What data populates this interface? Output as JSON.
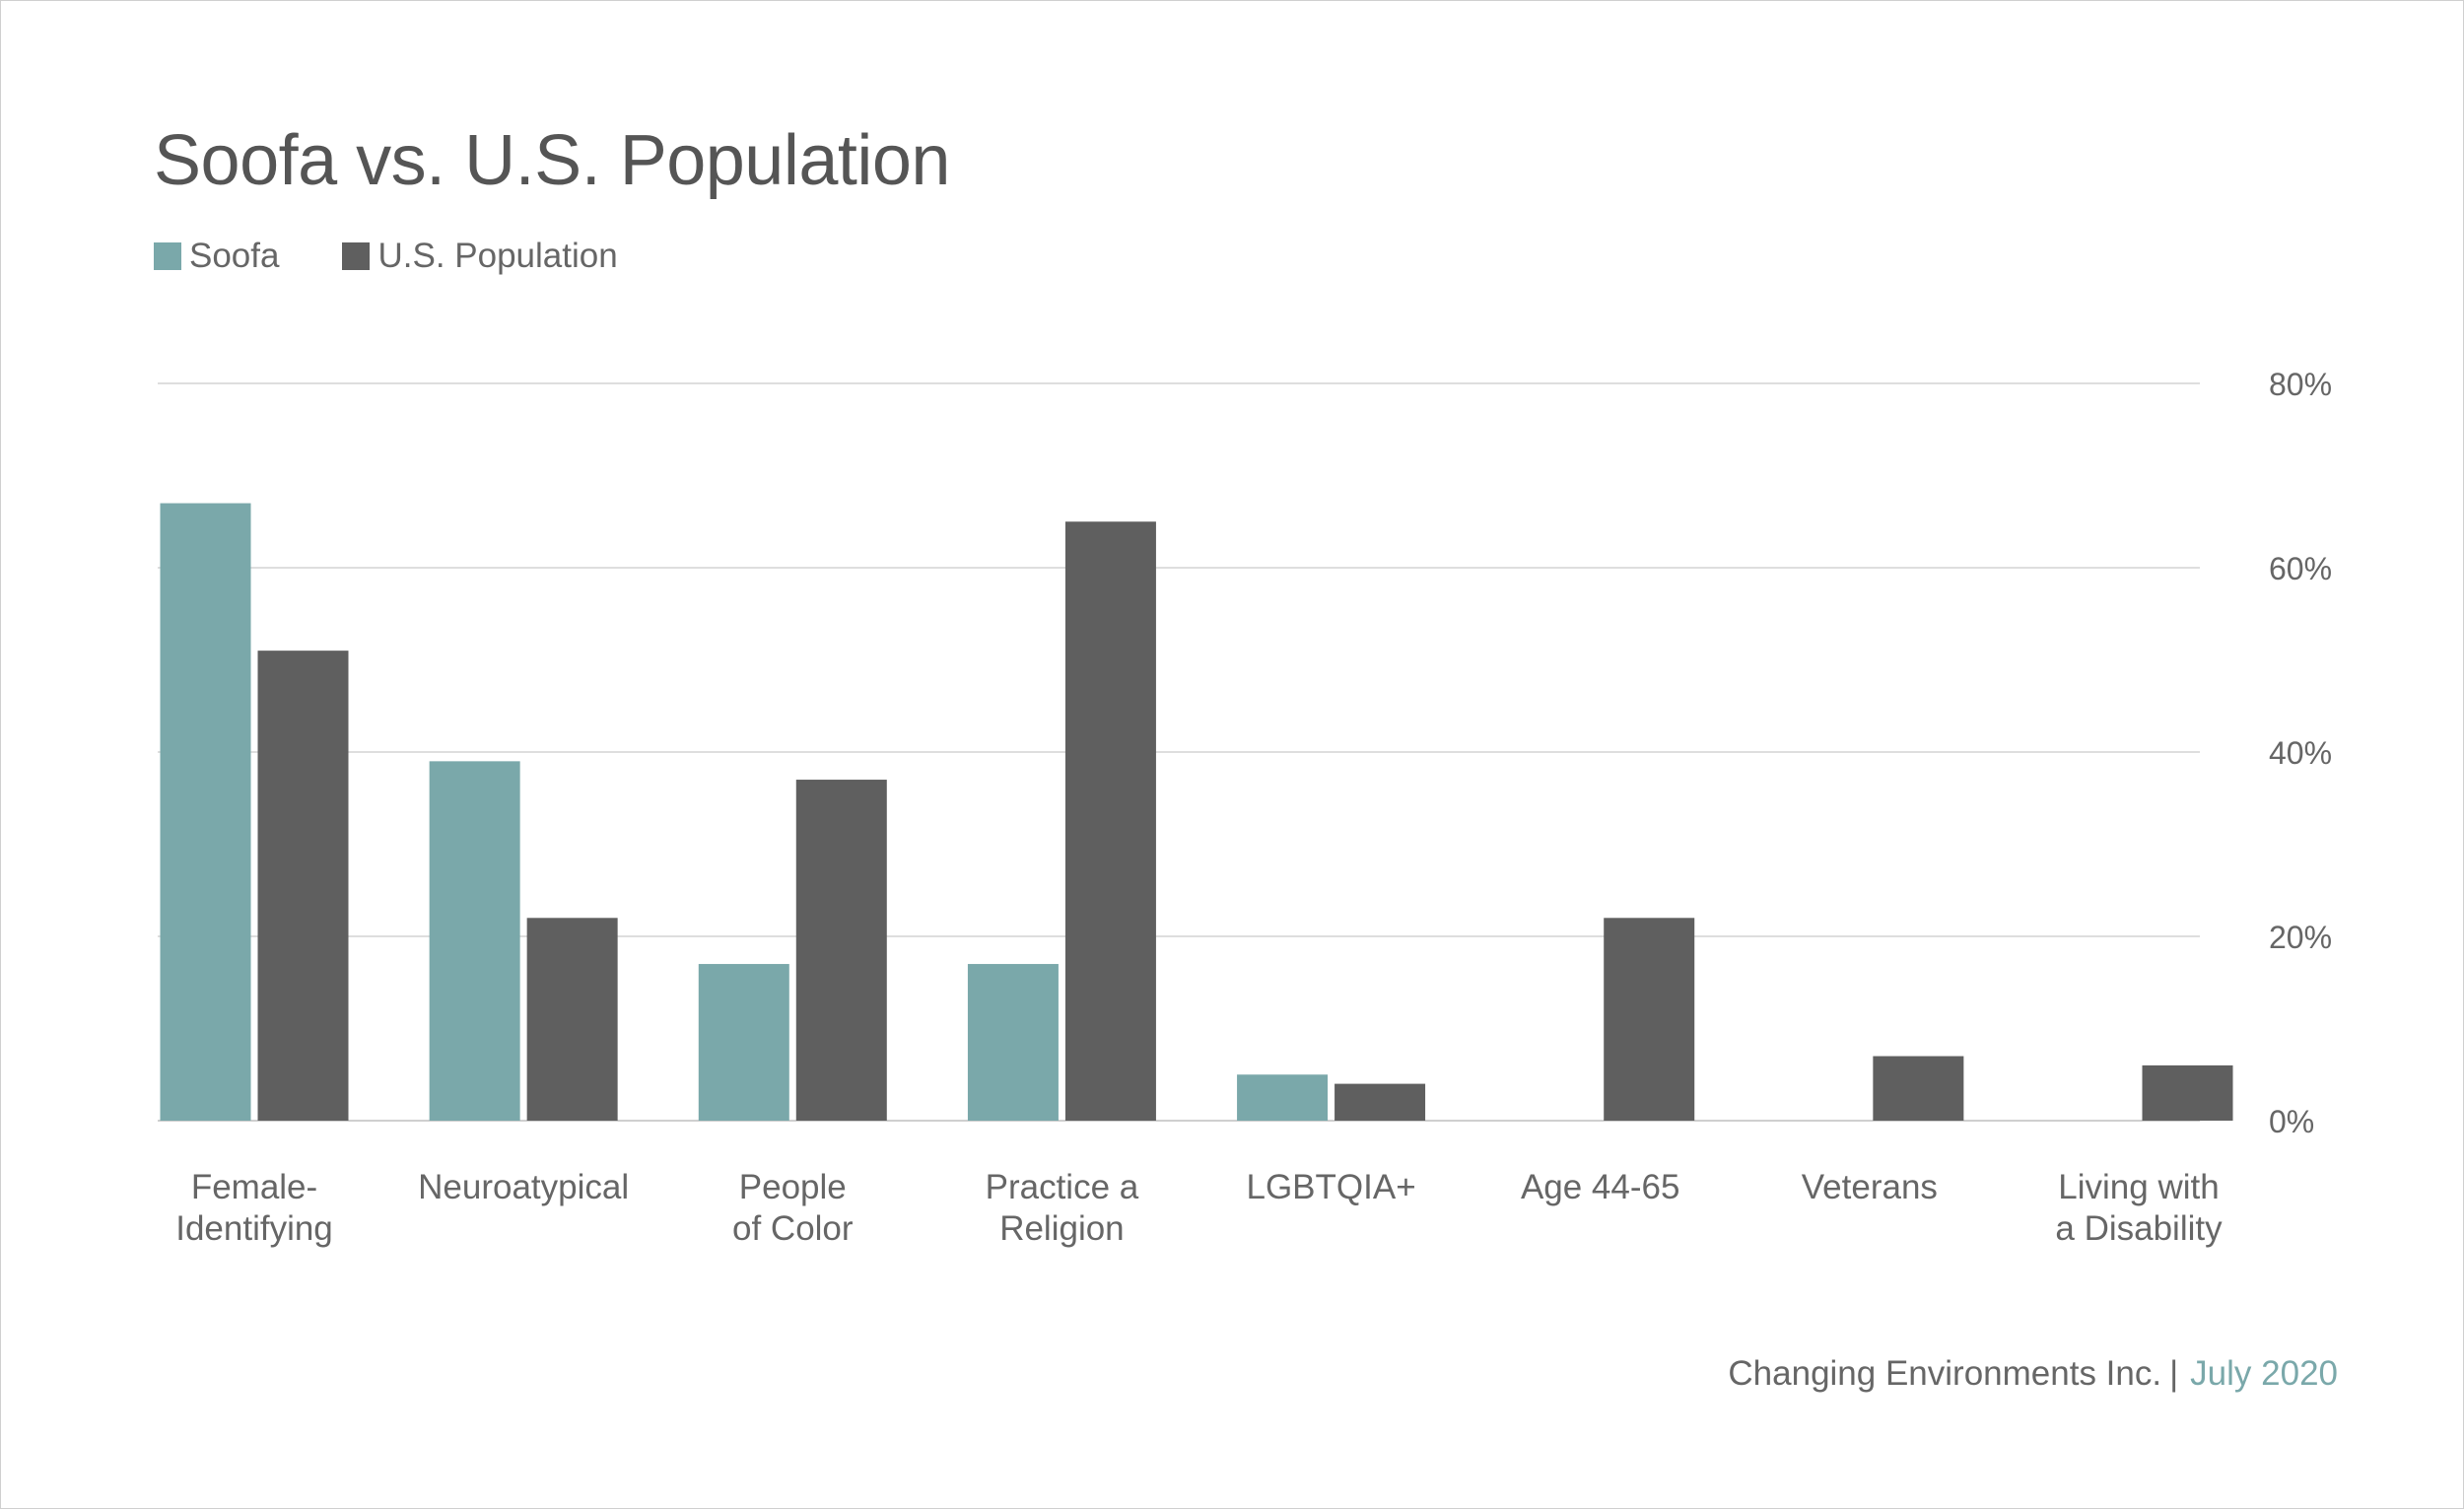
{
  "title": "Soofa vs. U.S. Population",
  "legend": [
    {
      "label": "Soofa",
      "color": "#7aa8aa"
    },
    {
      "label": "U.S. Population",
      "color": "#5f5f5f"
    }
  ],
  "footer": {
    "org": "Changing Environments Inc.",
    "separator": "|",
    "date": "July 2020",
    "date_color": "#7aa8aa"
  },
  "chart_data": {
    "type": "bar",
    "title": "Soofa vs. U.S. Population",
    "xlabel": "",
    "ylabel": "",
    "ylim": [
      0,
      80
    ],
    "yticks": [
      "0%",
      "20%",
      "40%",
      "60%",
      "80%"
    ],
    "ytick_values": [
      0,
      20,
      40,
      60,
      80
    ],
    "grid": true,
    "y_axis_side": "right",
    "legend_position": "top-left",
    "categories": [
      "Female-\nIdentifying",
      "Neuroatypical",
      "People\nof Color",
      "Practice a\nReligion",
      "LGBTQIA+",
      "Age 44-65",
      "Veterans",
      "Living with\na Disability"
    ],
    "series": [
      {
        "name": "Soofa",
        "color": "#7aa8aa",
        "values": [
          67,
          39,
          17,
          17,
          5,
          null,
          null,
          null
        ]
      },
      {
        "name": "U.S. Population",
        "color": "#5f5f5f",
        "values": [
          51,
          22,
          37,
          65,
          4,
          22,
          7,
          6
        ]
      }
    ]
  }
}
